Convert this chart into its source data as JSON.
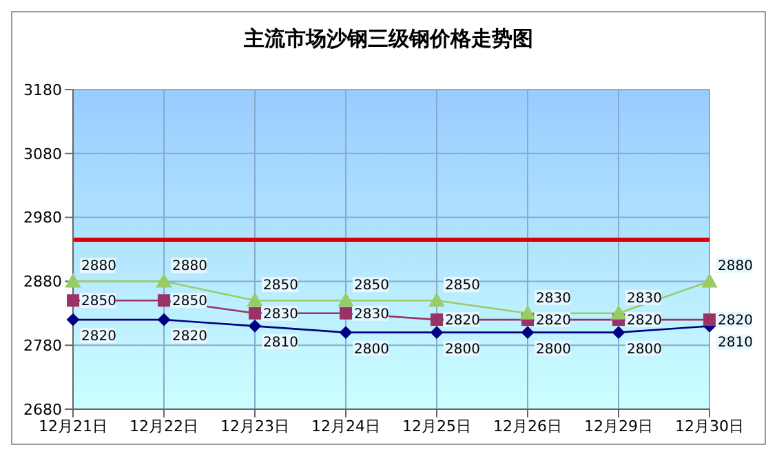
{
  "chart_data": {
    "type": "line",
    "title": "主流市场沙钢三级钢价格走势图",
    "categories": [
      "12月21日",
      "12月22日",
      "12月23日",
      "12月24日",
      "12月25日",
      "12月26日",
      "12月29日",
      "12月30日"
    ],
    "series": [
      {
        "color": "#000080",
        "marker": "diamond",
        "values": [
          2820,
          2820,
          2810,
          2800,
          2800,
          2800,
          2800,
          2810
        ],
        "value_labels": [
          "2820",
          "2820",
          "2810",
          "2800",
          "2800",
          "2800",
          "2800",
          "2810"
        ]
      },
      {
        "color": "#993366",
        "marker": "square",
        "values": [
          2850,
          2850,
          2830,
          2830,
          2820,
          2820,
          2820,
          2820
        ],
        "value_labels": [
          "2850",
          "2850",
          "2830",
          "2830",
          "2820",
          "2820",
          "2820",
          "2820"
        ]
      },
      {
        "color": "#99cc66",
        "marker": "triangle",
        "values": [
          2880,
          2880,
          2850,
          2850,
          2850,
          2830,
          2830,
          2880
        ],
        "value_labels": [
          "2880",
          "2880",
          "2850",
          "2850",
          "2850",
          "2830",
          "2830",
          "2880"
        ]
      },
      {
        "color": "#dd0000",
        "marker": "none",
        "values": [
          2945,
          2945,
          2945,
          2945,
          2945,
          2945,
          2945,
          2945
        ]
      }
    ],
    "ylim": [
      2680,
      3180
    ],
    "yticks": [
      2680,
      2780,
      2880,
      2980,
      3080,
      3180
    ],
    "grid": true
  }
}
